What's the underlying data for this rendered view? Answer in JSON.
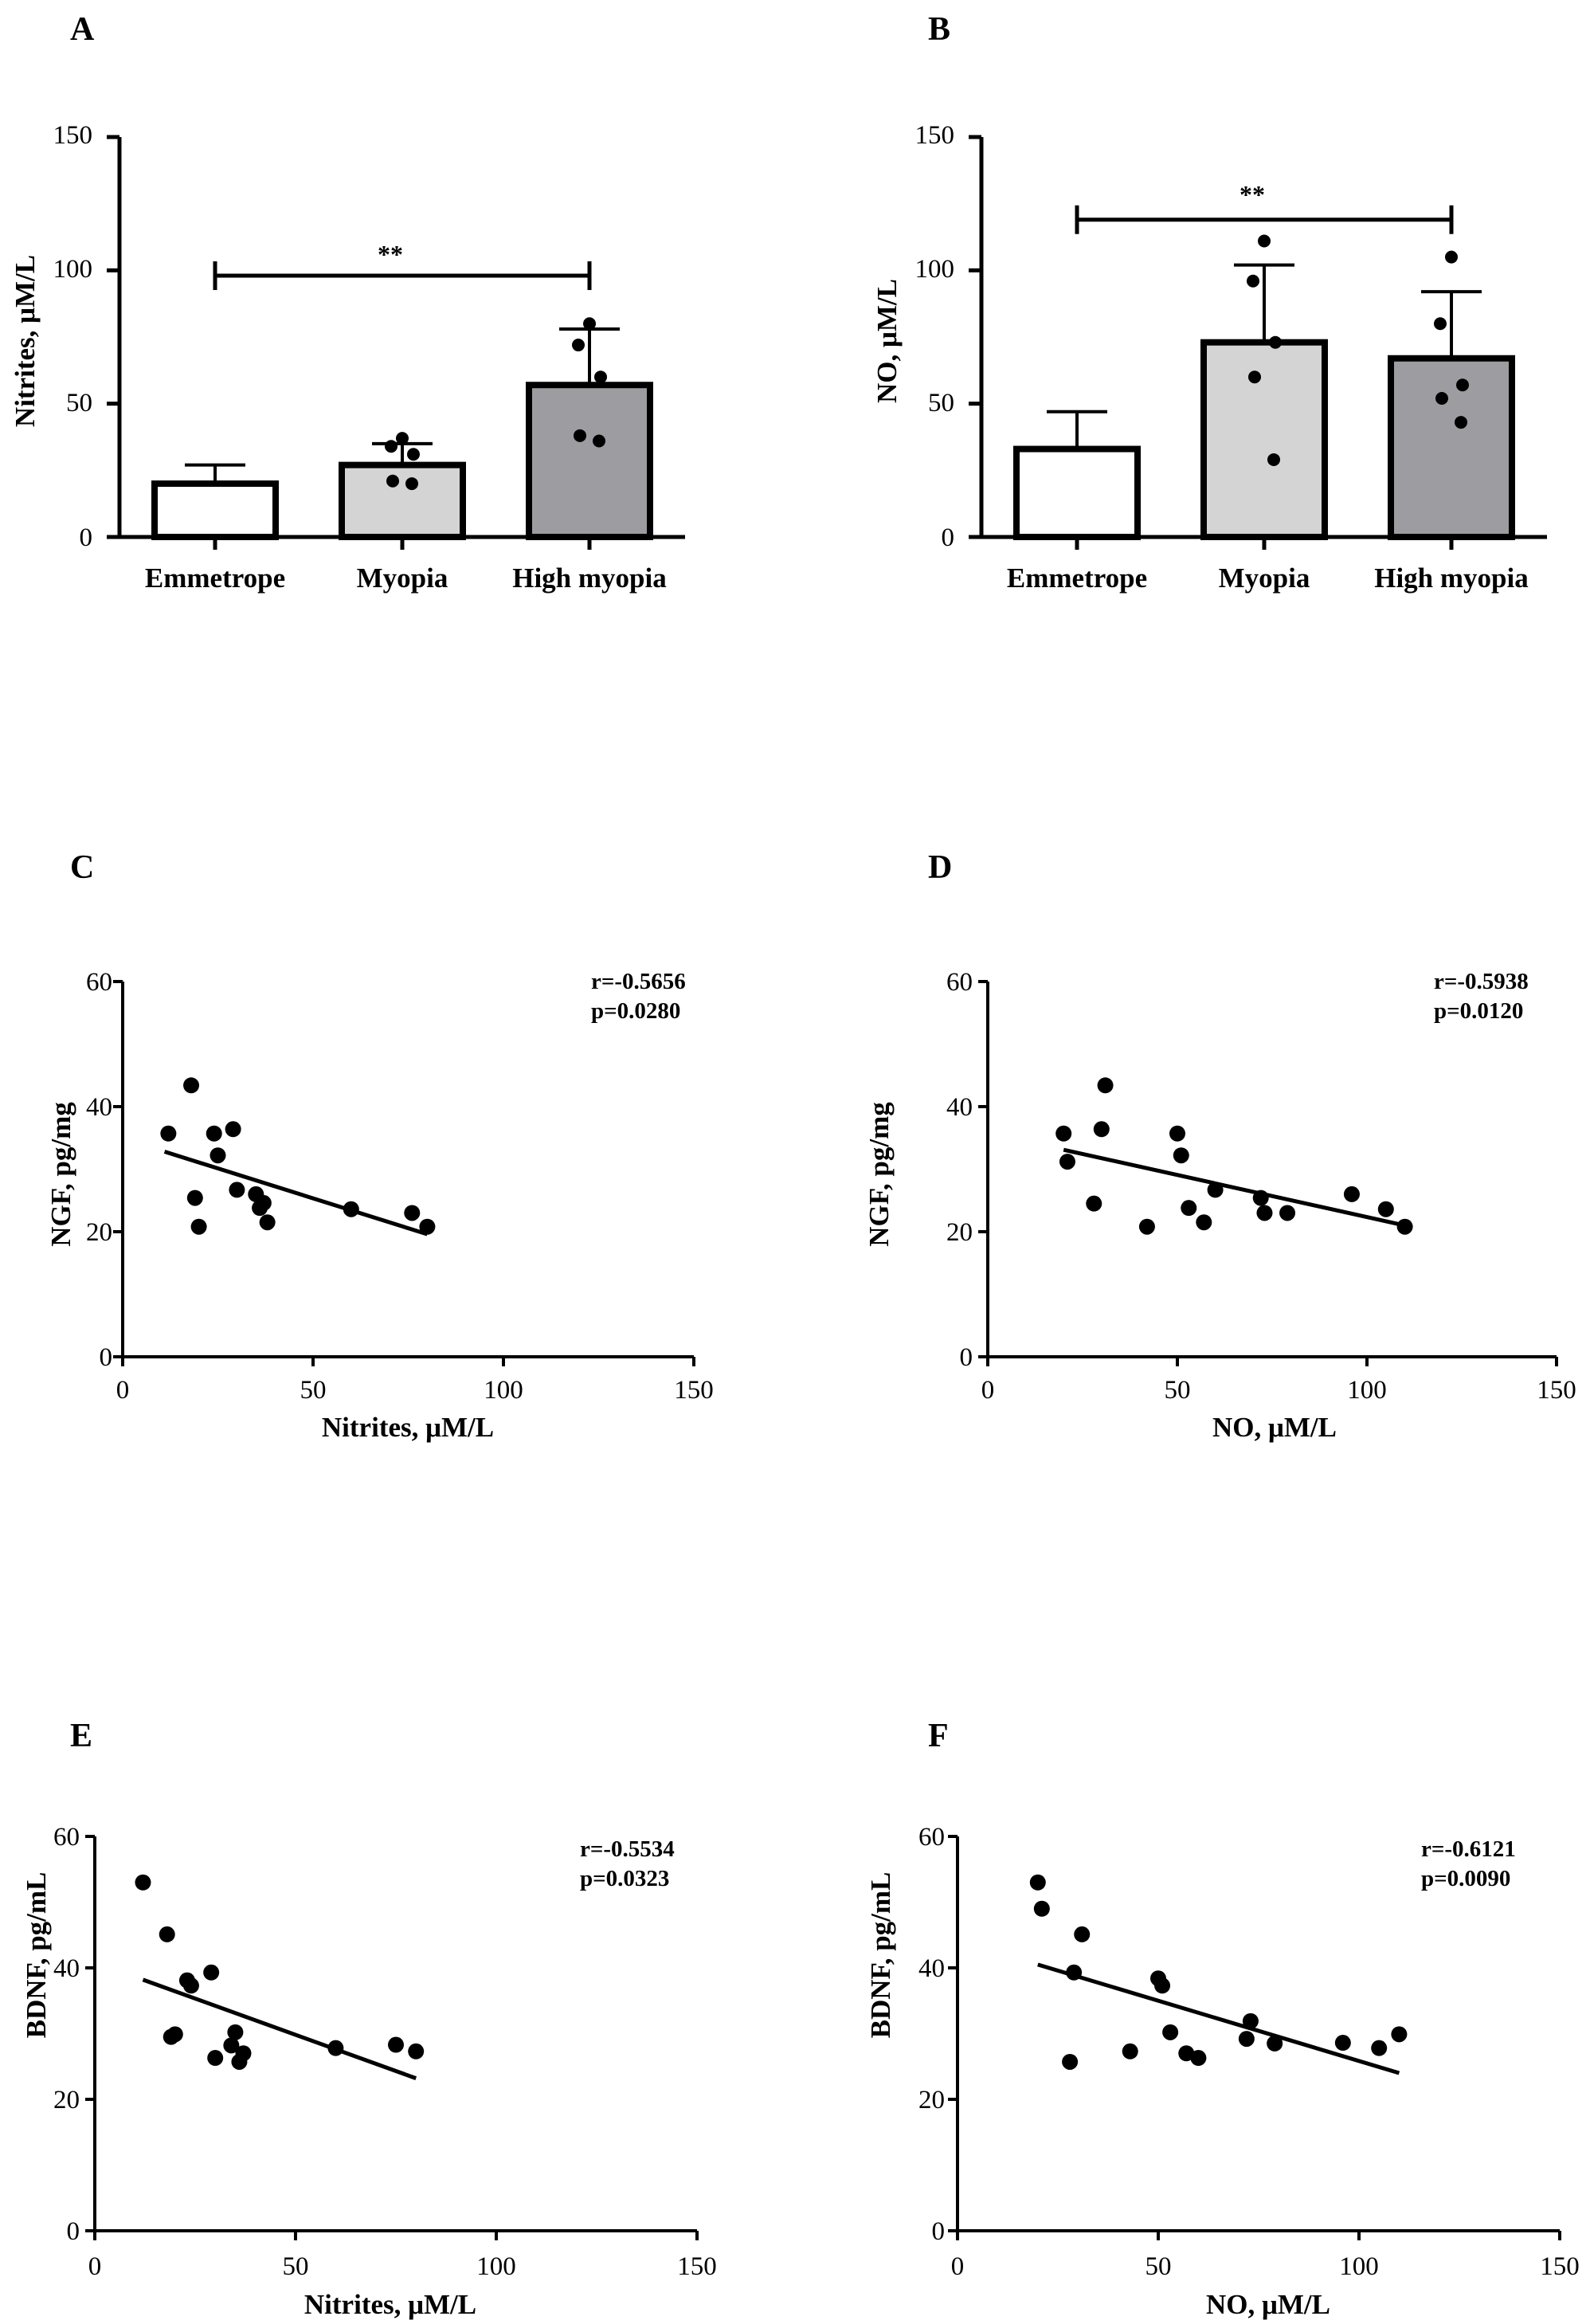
{
  "chart_data": [
    {
      "panel": "A",
      "type": "bar",
      "categories": [
        "Emmetrope",
        "Myopia",
        "High myopia"
      ],
      "values": [
        20,
        27,
        57
      ],
      "error_upper": [
        27,
        35,
        78
      ],
      "bar_colors": [
        "#ffffff",
        "#d4d4d4",
        "#9d9da1"
      ],
      "points": [
        [],
        [
          37,
          34,
          31,
          21,
          20
        ],
        [
          80,
          72,
          60,
          38,
          36
        ]
      ],
      "ylabel": "Nitrites, μM/L",
      "ylim": [
        0,
        150
      ],
      "yticks": [
        "0",
        "50",
        "100",
        "150"
      ],
      "significance": {
        "from": 0,
        "to": 2,
        "y": 98,
        "label": "**"
      }
    },
    {
      "panel": "B",
      "type": "bar",
      "categories": [
        "Emmetrope",
        "Myopia",
        "High myopia"
      ],
      "values": [
        33,
        73,
        67
      ],
      "error_upper": [
        47,
        102,
        92
      ],
      "bar_colors": [
        "#ffffff",
        "#d4d4d4",
        "#9d9da1"
      ],
      "points": [
        [],
        [
          111,
          96,
          73,
          60,
          29
        ],
        [
          105,
          80,
          57,
          52,
          43
        ]
      ],
      "ylabel": "NO, μM/L",
      "ylim": [
        0,
        150
      ],
      "yticks": [
        "0",
        "50",
        "100",
        "150"
      ],
      "significance": {
        "from": 0,
        "to": 2,
        "y": 119,
        "label": "**"
      }
    },
    {
      "panel": "C",
      "type": "scatter",
      "x": [
        12,
        18,
        19,
        20,
        24,
        25,
        29,
        30,
        35,
        36,
        37,
        38,
        60,
        76,
        80
      ],
      "y": [
        35.7,
        43.4,
        25.4,
        20.8,
        35.7,
        32.2,
        36.4,
        26.7,
        26.0,
        23.8,
        24.6,
        21.5,
        23.6,
        23.0,
        20.8
      ],
      "fit": {
        "x": [
          11,
          80
        ],
        "y": [
          32.8,
          19.6
        ]
      },
      "xlabel": "Nitrites, μM/L",
      "ylabel": "NGF, pg/mg",
      "xlim": [
        0,
        150
      ],
      "ylim": [
        0,
        60
      ],
      "xticks": [
        "0",
        "50",
        "100",
        "150"
      ],
      "yticks": [
        "0",
        "20",
        "40",
        "60"
      ],
      "annotation": [
        "r=-0.5656",
        "p=0.0280"
      ]
    },
    {
      "panel": "D",
      "type": "scatter",
      "x": [
        20,
        21,
        28,
        30,
        31,
        42,
        50,
        51,
        53,
        57,
        60,
        72,
        73,
        79,
        96,
        105,
        110
      ],
      "y": [
        35.7,
        31.2,
        24.5,
        36.4,
        43.4,
        20.8,
        35.7,
        32.2,
        23.8,
        21.5,
        26.7,
        25.4,
        23.0,
        23.0,
        26.0,
        23.6,
        20.8
      ],
      "fit": {
        "x": [
          20,
          110
        ],
        "y": [
          33.1,
          21.0
        ]
      },
      "xlabel": "NO, μM/L",
      "ylabel": "NGF, pg/mg",
      "xlim": [
        0,
        150
      ],
      "ylim": [
        0,
        60
      ],
      "xticks": [
        "0",
        "50",
        "100",
        "150"
      ],
      "yticks": [
        "0",
        "20",
        "40",
        "60"
      ],
      "annotation": [
        "r=-0.5938",
        "p=0.0120"
      ]
    },
    {
      "panel": "E",
      "type": "scatter",
      "x": [
        12,
        18,
        19,
        20,
        23,
        24,
        29,
        30,
        34,
        35,
        36,
        37,
        60,
        75,
        80
      ],
      "y": [
        53.0,
        45.1,
        29.5,
        29.9,
        38.1,
        37.3,
        39.3,
        26.3,
        28.2,
        30.2,
        25.7,
        27.0,
        27.8,
        28.3,
        27.3
      ],
      "fit": {
        "x": [
          12,
          80
        ],
        "y": [
          38.2,
          23.2
        ]
      },
      "xlabel": "Nitrites, μM/L",
      "ylabel": "BDNF, pg/mL",
      "xlim": [
        0,
        150
      ],
      "ylim": [
        0,
        60
      ],
      "xticks": [
        "0",
        "50",
        "100",
        "150"
      ],
      "yticks": [
        "0",
        "20",
        "40",
        "60"
      ],
      "annotation": [
        "r=-0.5534",
        "p=0.0323"
      ]
    },
    {
      "panel": "F",
      "type": "scatter",
      "x": [
        20,
        21,
        28,
        29,
        31,
        43,
        50,
        51,
        53,
        57,
        60,
        72,
        73,
        79,
        96,
        105,
        110
      ],
      "y": [
        53.0,
        49.0,
        25.7,
        39.3,
        45.1,
        27.3,
        38.4,
        37.3,
        30.2,
        27.0,
        26.3,
        29.2,
        31.9,
        28.5,
        28.6,
        27.8,
        29.9
      ],
      "fit": {
        "x": [
          20,
          110
        ],
        "y": [
          40.5,
          24.0
        ]
      },
      "xlabel": "NO, μM/L",
      "ylabel": "BDNF, pg/mL",
      "xlim": [
        0,
        150
      ],
      "ylim": [
        0,
        60
      ],
      "xticks": [
        "0",
        "50",
        "100",
        "150"
      ],
      "yticks": [
        "0",
        "20",
        "40",
        "60"
      ],
      "annotation": [
        "r=-0.6121",
        "p=0.0090"
      ]
    }
  ]
}
